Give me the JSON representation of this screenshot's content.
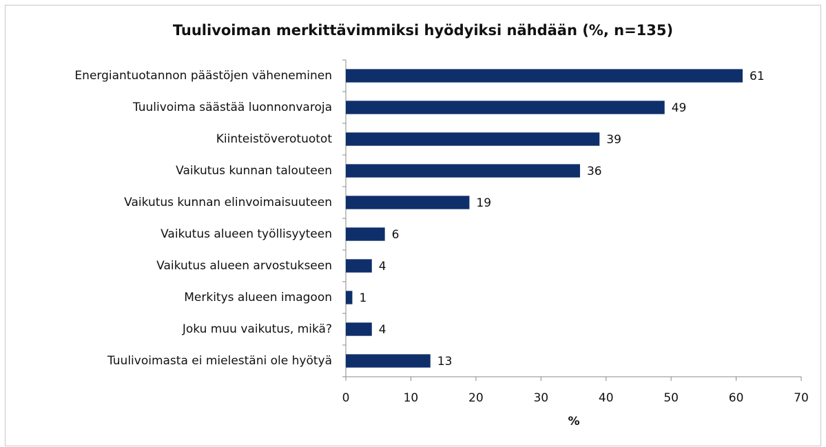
{
  "chart_data": {
    "type": "bar",
    "orientation": "horizontal",
    "title": "Tuulivoiman merkittävimmiksi hyödyiksi nähdään (%, n=135)",
    "categories": [
      "Energiantuotannon päästöjen väheneminen",
      "Tuulivoima säästää luonnonvaroja",
      "Kiinteistöverotuotot",
      "Vaikutus kunnan talouteen",
      "Vaikutus kunnan elinvoimaisuuteen",
      "Vaikutus alueen työllisyyteen",
      "Vaikutus alueen arvostukseen",
      "Merkitys alueen imagoon",
      "Joku muu vaikutus, mikä?",
      "Tuulivoimasta ei mielestäni ole hyötyä"
    ],
    "values": [
      61,
      49,
      39,
      36,
      19,
      6,
      4,
      1,
      4,
      13
    ],
    "color": "#0f2f6b",
    "xlabel": "%",
    "xlim": [
      0,
      70
    ],
    "xticks": [
      0,
      10,
      20,
      30,
      40,
      50,
      60,
      70
    ],
    "grid": false
  }
}
